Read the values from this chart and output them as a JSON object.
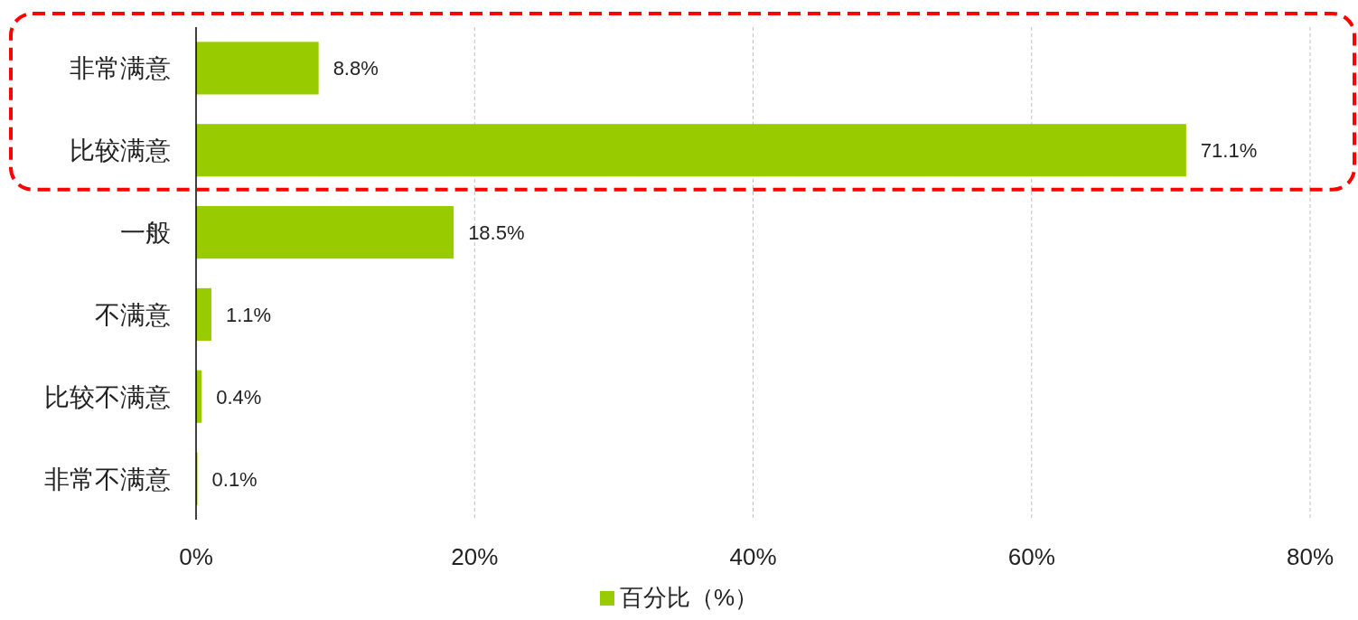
{
  "chart_data": {
    "type": "bar",
    "orientation": "horizontal",
    "categories": [
      "非常满意",
      "比较满意",
      "一般",
      "不满意",
      "比较不满意",
      "非常不满意"
    ],
    "series": [
      {
        "name": "百分比（%）",
        "color": "#99cc00",
        "values": [
          8.8,
          71.1,
          18.5,
          1.1,
          0.4,
          0.1
        ],
        "value_labels": [
          "8.8%",
          "71.1%",
          "18.5%",
          "1.1%",
          "0.4%",
          "0.1%"
        ]
      }
    ],
    "xlim": [
      0,
      80
    ],
    "xticks": [
      {
        "value": 0,
        "label": "0%"
      },
      {
        "value": 20,
        "label": "20%"
      },
      {
        "value": 40,
        "label": "40%"
      },
      {
        "value": 60,
        "label": "60%"
      },
      {
        "value": 80,
        "label": "80%"
      }
    ],
    "grid": "x",
    "legend": "bottom"
  }
}
